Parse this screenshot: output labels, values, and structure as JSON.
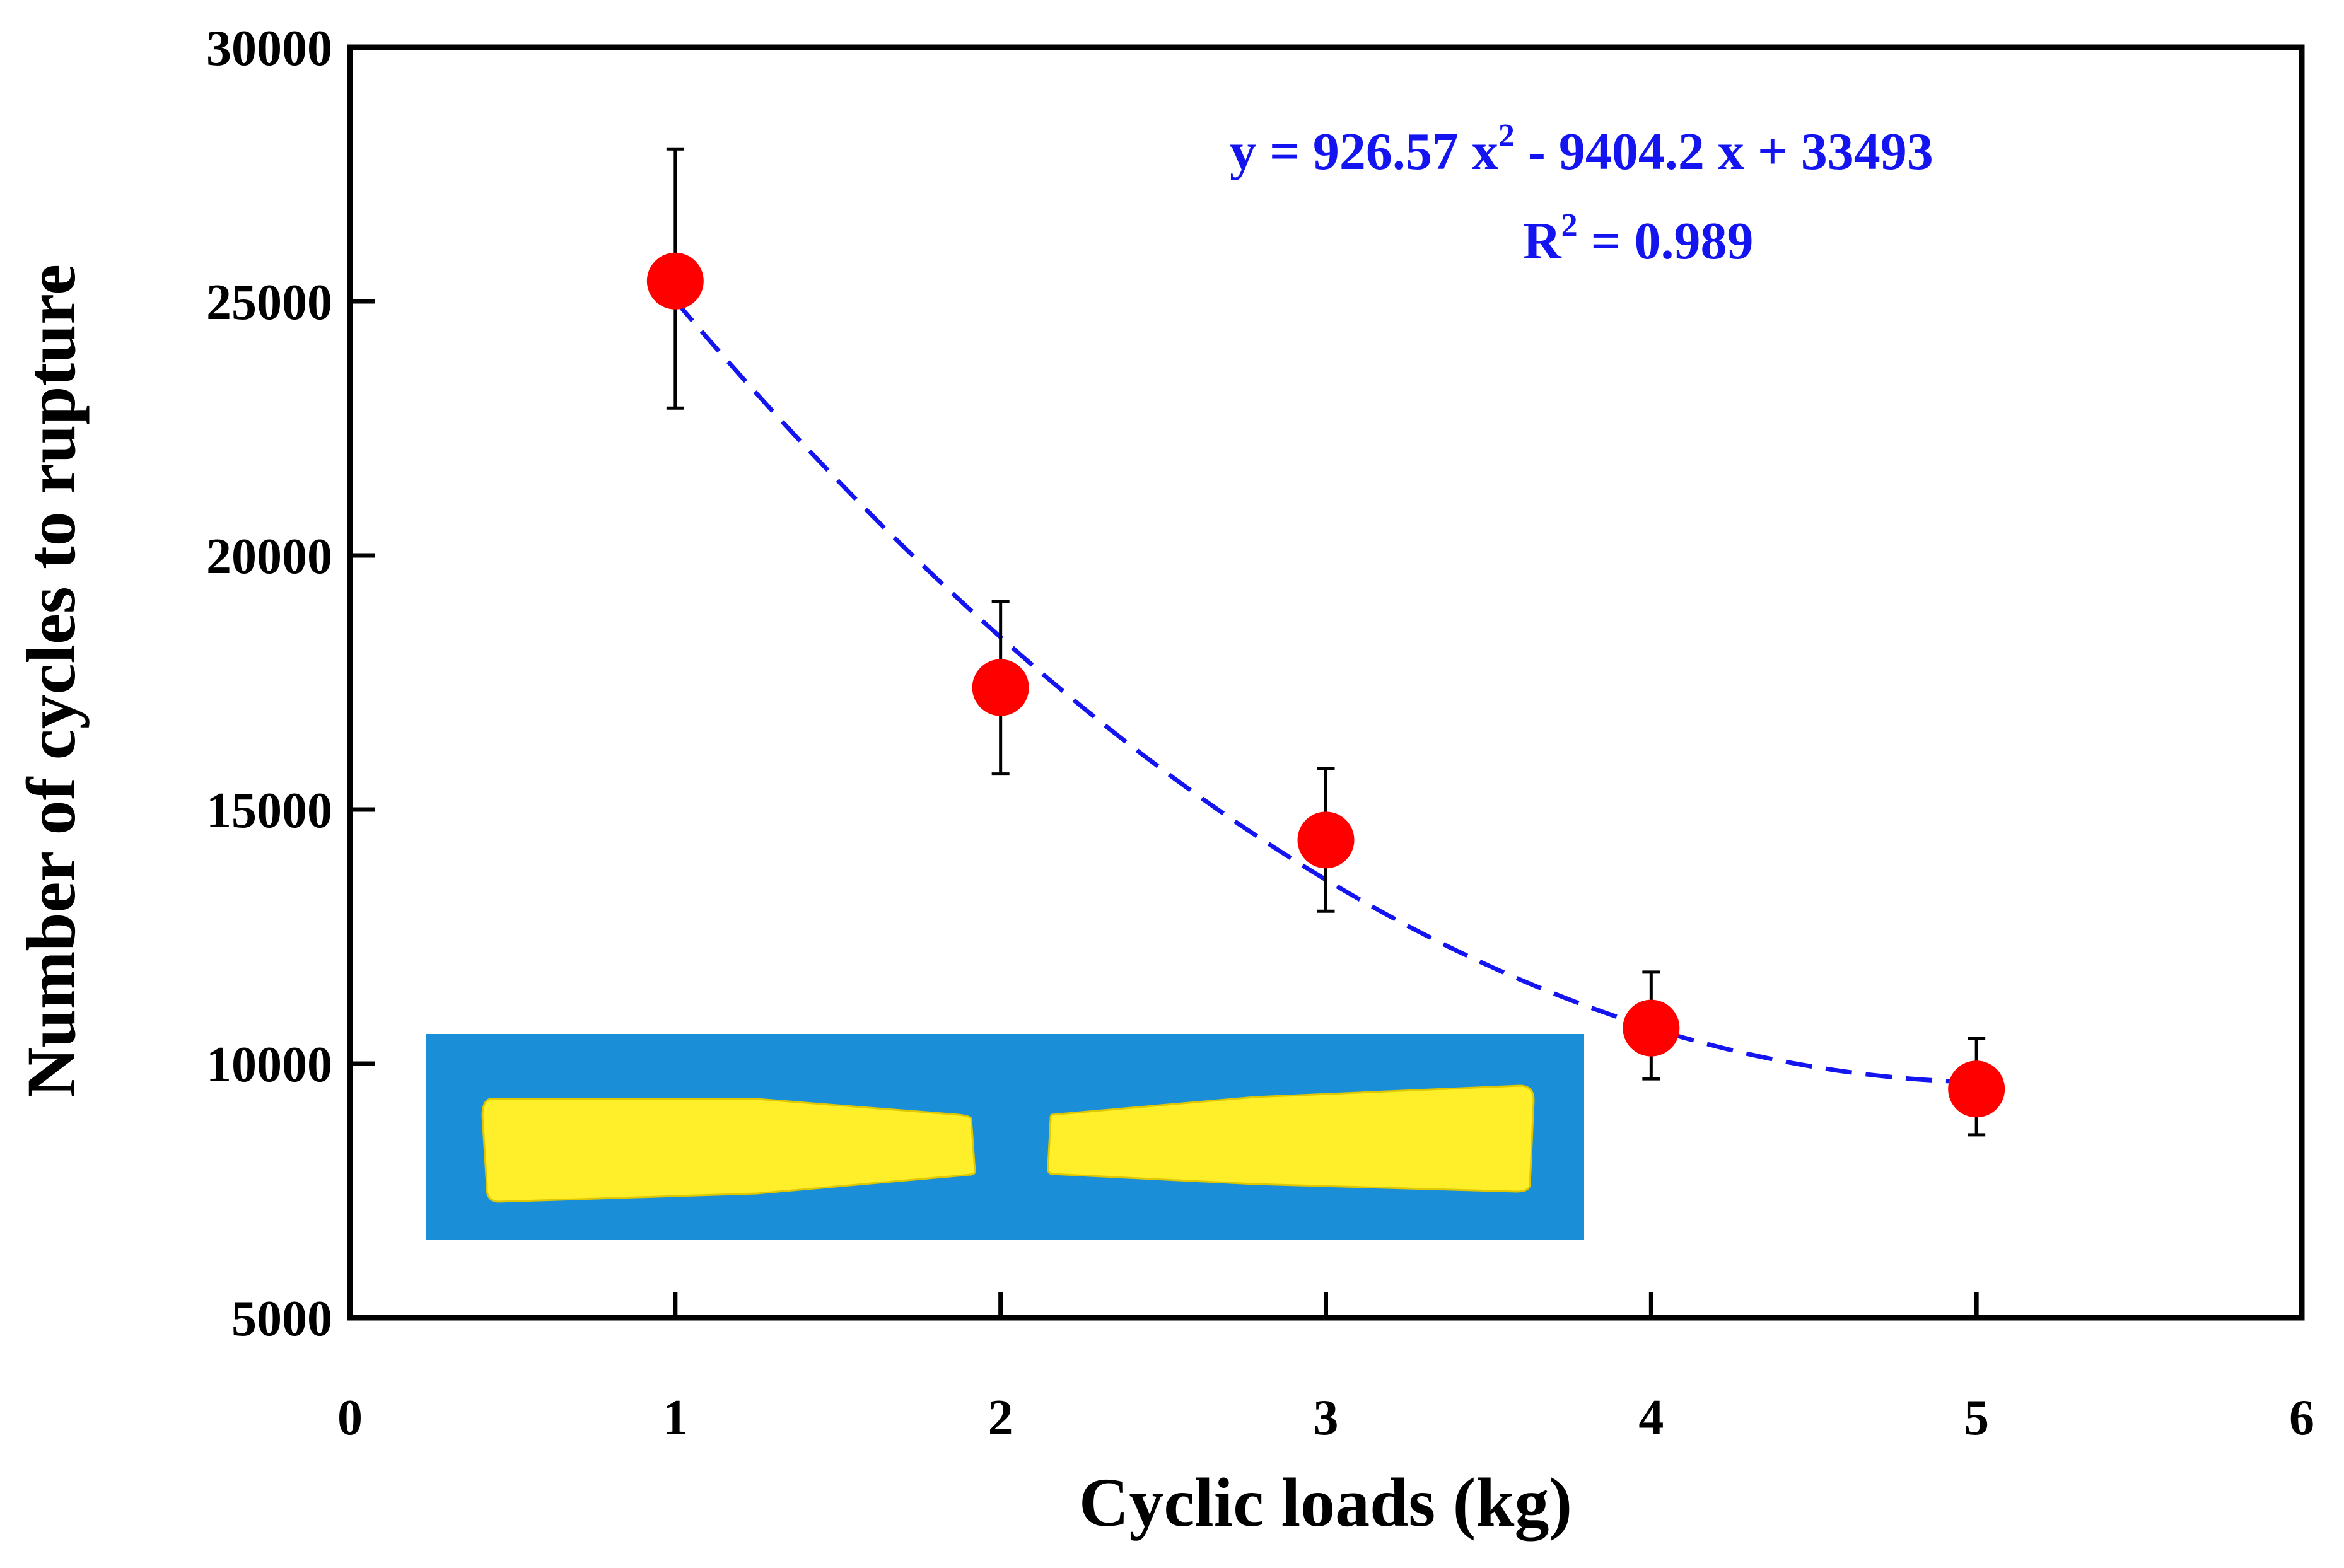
{
  "chart_data": {
    "type": "scatter",
    "title": "",
    "xlabel": "Cyclic loads (kg)",
    "ylabel": "Number of cycles to rupture",
    "xlim": [
      0,
      6
    ],
    "ylim": [
      5000,
      30000
    ],
    "x_ticks": [
      "0",
      "1",
      "2",
      "3",
      "4",
      "5",
      "6"
    ],
    "y_ticks": [
      "5000",
      "10000",
      "15000",
      "20000",
      "25000",
      "30000"
    ],
    "grid": false,
    "legend": "none",
    "series": [
      {
        "type": "scatter",
        "marker_color": "#ff0000",
        "x": [
          1,
          2,
          3,
          4,
          5
        ],
        "y": [
          25400,
          17400,
          14400,
          10700,
          9500
        ],
        "error_upper": [
          28000,
          19100,
          15800,
          11800,
          10500
        ],
        "error_lower": [
          22900,
          15700,
          13000,
          9700,
          8600
        ]
      }
    ],
    "trendline": {
      "type": "polynomial",
      "order": 2,
      "coefficients": [
        926.57,
        -9404.2,
        33493
      ],
      "x_range": [
        1,
        5
      ],
      "color": "#1414f0",
      "style": "dashed"
    },
    "annotations": {
      "equation_parts": [
        "y = 926.57 x",
        "2",
        " - 9404.2 x + 33493"
      ],
      "r2_parts": [
        "R",
        "2",
        " = 0.989"
      ]
    },
    "inset": {
      "description_visible": false,
      "background_color": "#1a8fd8",
      "specimen_color": "#ffef2a"
    }
  }
}
